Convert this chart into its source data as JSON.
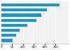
{
  "values": [
    268,
    210,
    185,
    160,
    118,
    85,
    68,
    52
  ],
  "bar_color": "#2196c4",
  "background_color": "#ffffff",
  "plot_bg_color": "#f2f2f2",
  "xlim": [
    0,
    310
  ],
  "figsize": [
    1.0,
    0.71
  ],
  "dpi": 100,
  "grid_color": "#ffffff",
  "axis_label_fontsize": 3.0,
  "bar_height": 0.6
}
